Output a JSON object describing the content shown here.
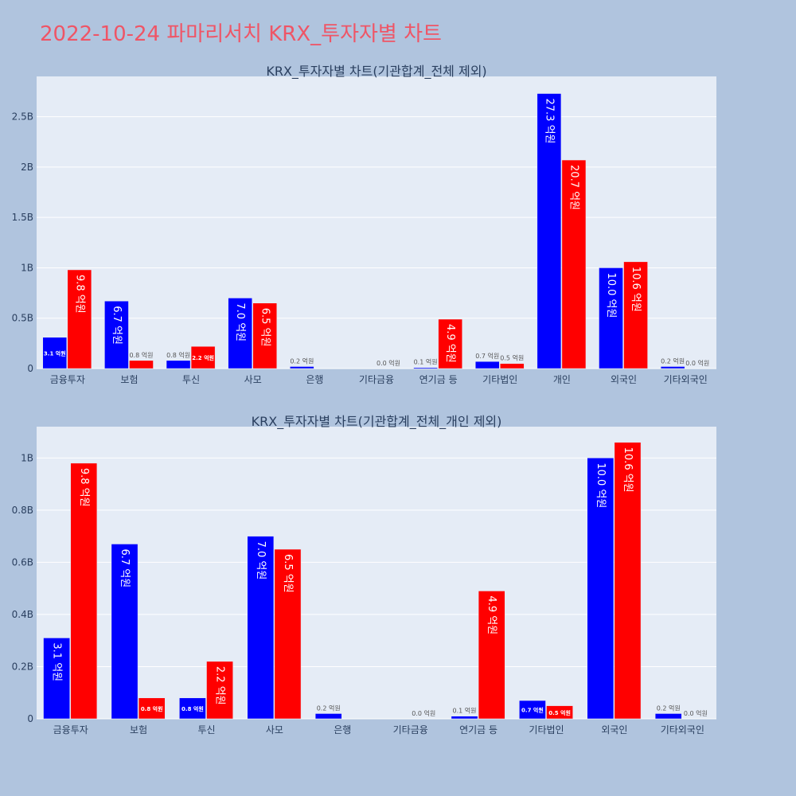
{
  "page_title": "2022-10-24 파마리서치 KRX_투자자별 차트",
  "colors": {
    "background": "#b0c4de",
    "plot_bg": "#e5ecf6",
    "grid": "#ffffff",
    "title": "#ef5566",
    "axis_text": "#2a3f5f",
    "buy_bar": "#0000ff",
    "sell_bar": "#ff0000"
  },
  "chart_data": [
    {
      "type": "bar",
      "barmode": "group",
      "title": "KRX_투자자별 차트(기관합계_전체 제외)",
      "categories": [
        "금융투자",
        "보험",
        "투신",
        "사모",
        "은행",
        "기타금융",
        "연기금 등",
        "기타법인",
        "개인",
        "외국인",
        "기타외국인"
      ],
      "series": [
        {
          "color": "#0000ff",
          "values": [
            0.31,
            0.67,
            0.08,
            0.7,
            0.02,
            0.0,
            0.01,
            0.07,
            2.73,
            1.0,
            0.02
          ],
          "labels": [
            "3.1 억원",
            "6.7 억원",
            "0.8 억원",
            "7.0 억원",
            "0.2 억원",
            "",
            "0.1 억원",
            "0.7 억원",
            "27.3 억원",
            "10.0 억원",
            "0.2 억원"
          ]
        },
        {
          "color": "#ff0000",
          "values": [
            0.98,
            0.08,
            0.22,
            0.65,
            0.0,
            0.0,
            0.49,
            0.05,
            2.07,
            1.06,
            0.0
          ],
          "labels": [
            "9.8 억원",
            "0.8 억원",
            "2.2 억원",
            "6.5 억원",
            "",
            "0.0 억원",
            "4.9 억원",
            "0.5 억원",
            "20.7 억원",
            "10.6 억원",
            "0.0 억원"
          ]
        }
      ],
      "yticks": [
        0,
        0.5,
        1,
        1.5,
        2,
        2.5
      ],
      "ytick_labels": [
        "0",
        "0.5B",
        "1B",
        "1.5B",
        "2B",
        "2.5B"
      ],
      "ylim": [
        0,
        2.9
      ],
      "grid": true
    },
    {
      "type": "bar",
      "barmode": "group",
      "title": "KRX_투자자별 차트(기관합계_전체_개인 제외)",
      "categories": [
        "금융투자",
        "보험",
        "투신",
        "사모",
        "은행",
        "기타금융",
        "연기금 등",
        "기타법인",
        "외국인",
        "기타외국인"
      ],
      "series": [
        {
          "color": "#0000ff",
          "values": [
            0.31,
            0.67,
            0.08,
            0.7,
            0.02,
            0.0,
            0.01,
            0.07,
            1.0,
            0.02
          ],
          "labels": [
            "3.1 억원",
            "6.7 억원",
            "0.8 억원",
            "7.0 억원",
            "0.2 억원",
            "",
            "0.1 억원",
            "0.7 억원",
            "10.0 억원",
            "0.2 억원"
          ]
        },
        {
          "color": "#ff0000",
          "values": [
            0.98,
            0.08,
            0.22,
            0.65,
            0.0,
            0.0,
            0.49,
            0.05,
            1.06,
            0.0
          ],
          "labels": [
            "9.8 억원",
            "0.8 억원",
            "2.2 억원",
            "6.5 억원",
            "",
            "0.0 억원",
            "4.9 억원",
            "0.5 억원",
            "10.6 억원",
            "0.0 억원"
          ]
        }
      ],
      "yticks": [
        0,
        0.2,
        0.4,
        0.6,
        0.8,
        1
      ],
      "ytick_labels": [
        "0",
        "0.2B",
        "0.4B",
        "0.6B",
        "0.8B",
        "1B"
      ],
      "ylim": [
        0,
        1.12
      ],
      "grid": true
    }
  ]
}
